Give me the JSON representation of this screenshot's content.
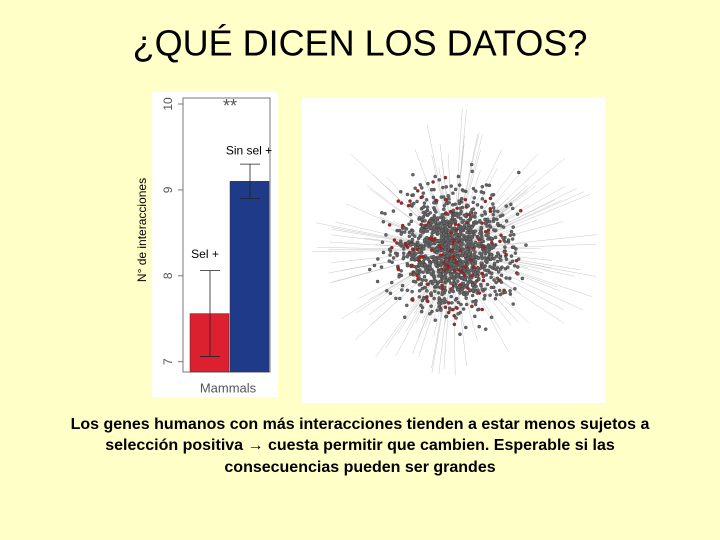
{
  "slide": {
    "title": "¿QUÉ DICEN LOS DATOS?",
    "caption": [
      "Los genes humanos con más interacciones tienden a estar menos sujetos a",
      "selección positiva → cuesta permitir que cambien. Esperable si las",
      "consecuencias pueden ser grandes"
    ]
  },
  "chart_data": {
    "type": "bar",
    "x_label": "Mammals",
    "y_label": "N° de interacciones",
    "annotation": "**",
    "categories": [
      "Sel +",
      "Sin sel +"
    ],
    "values": [
      7.56,
      9.1
    ],
    "errors": [
      0.5,
      0.2
    ],
    "colors": [
      "#dd2030",
      "#1f3a88"
    ],
    "ylim": [
      6.88,
      10.07
    ],
    "yticks": [
      7,
      8,
      9,
      10
    ]
  }
}
